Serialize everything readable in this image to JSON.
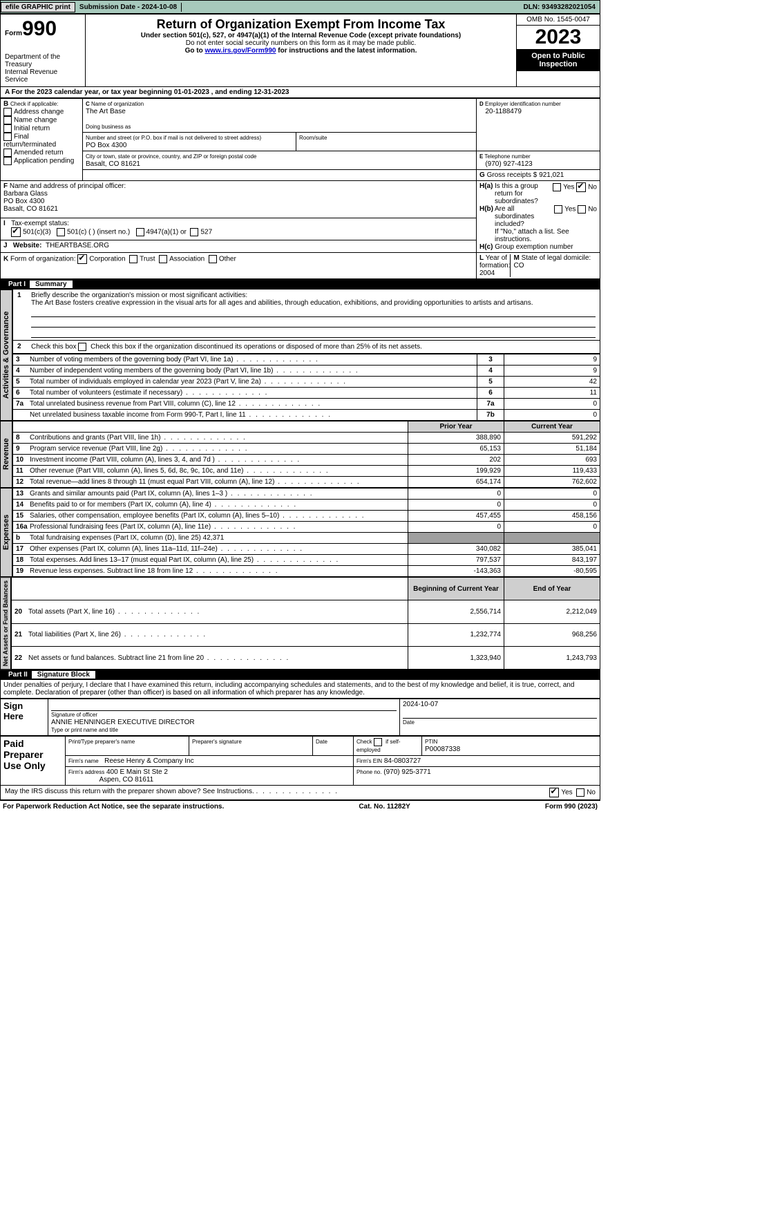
{
  "top": {
    "efile": "efile GRAPHIC print",
    "sub_lbl": "Submission Date - 2024-10-08",
    "dln": "DLN: 93493282021054"
  },
  "hdr": {
    "form": "Form",
    "num": "990",
    "dept": "Department of the Treasury",
    "irs": "Internal Revenue Service",
    "title": "Return of Organization Exempt From Income Tax",
    "sub1": "Under section 501(c), 527, or 4947(a)(1) of the Internal Revenue Code (except private foundations)",
    "sub2": "Do not enter social security numbers on this form as it may be made public.",
    "sub3a": "Go to ",
    "sub3link": "www.irs.gov/Form990",
    "sub3b": " for instructions and the latest information.",
    "omb": "OMB No. 1545-0047",
    "year": "2023",
    "insp": "Open to Public Inspection"
  },
  "A": {
    "txt": "For the 2023 calendar year, or tax year beginning 01-01-2023    , and ending 12-31-2023"
  },
  "B": {
    "hdr": "Check if applicable:",
    "o1": "Address change",
    "o2": "Name change",
    "o3": "Initial return",
    "o4": "Final return/terminated",
    "o5": "Amended return",
    "o6": "Application pending"
  },
  "C": {
    "l1": "Name of organization",
    "v1": "The Art Base",
    "l2": "Doing business as",
    "l3": "Number and street (or P.O. box if mail is not delivered to street address)",
    "v3": "PO Box 4300",
    "l3b": "Room/suite",
    "l4": "City or town, state or province, country, and ZIP or foreign postal code",
    "v4": "Basalt, CO  81621"
  },
  "D": {
    "lbl": "Employer identification number",
    "val": "20-1188479"
  },
  "E": {
    "lbl": "Telephone number",
    "val": "(970) 927-4123"
  },
  "G": {
    "lbl": "Gross receipts $",
    "val": "921,021"
  },
  "F": {
    "lbl": "Name and address of principal officer:",
    "name": "Barbara Glass",
    "addr1": "PO Box 4300",
    "addr2": "Basalt, CO  81621"
  },
  "H": {
    "a": "Is this a group return for subordinates?",
    "b": "Are all subordinates included?",
    "note": "If \"No,\" attach a list. See instructions.",
    "c": "Group exemption number",
    "yes": "Yes",
    "no": "No"
  },
  "I": {
    "lbl": "Tax-exempt status:",
    "o1": "501(c)(3)",
    "o2": "501(c) (  ) (insert no.)",
    "o3": "4947(a)(1) or",
    "o4": "527"
  },
  "J": {
    "lbl": "Website:",
    "val": "THEARTBASE.ORG"
  },
  "K": {
    "lbl": "Form of organization:",
    "o1": "Corporation",
    "o2": "Trust",
    "o3": "Association",
    "o4": "Other"
  },
  "L": {
    "lbl": "Year of formation:",
    "val": "2004"
  },
  "M": {
    "lbl": "State of legal domicile:",
    "val": "CO"
  },
  "P1": {
    "part": "Part I",
    "title": "Summary",
    "l1": "Briefly describe the organization's mission or most significant activities:",
    "l1v": "The Art Base fosters creative expression in the visual arts for all ages and abilities, through education, exhibitions, and providing opportunities to artists and artisans.",
    "l2": "Check this box      if the organization discontinued its operations or disposed of more than 25% of its net assets.",
    "rows_top": [
      {
        "n": "3",
        "t": "Number of voting members of the governing body (Part VI, line 1a)",
        "k": "3",
        "v": "9"
      },
      {
        "n": "4",
        "t": "Number of independent voting members of the governing body (Part VI, line 1b)",
        "k": "4",
        "v": "9"
      },
      {
        "n": "5",
        "t": "Total number of individuals employed in calendar year 2023 (Part V, line 2a)",
        "k": "5",
        "v": "42"
      },
      {
        "n": "6",
        "t": "Total number of volunteers (estimate if necessary)",
        "k": "6",
        "v": "11"
      },
      {
        "n": "7a",
        "t": "Total unrelated business revenue from Part VIII, column (C), line 12",
        "k": "7a",
        "v": "0"
      },
      {
        "n": "",
        "t": "Net unrelated business taxable income from Form 990-T, Part I, line 11",
        "k": "7b",
        "v": "0"
      }
    ],
    "py": "Prior Year",
    "cy": "Current Year",
    "rev": [
      {
        "n": "8",
        "t": "Contributions and grants (Part VIII, line 1h)",
        "p": "388,890",
        "c": "591,292"
      },
      {
        "n": "9",
        "t": "Program service revenue (Part VIII, line 2g)",
        "p": "65,153",
        "c": "51,184"
      },
      {
        "n": "10",
        "t": "Investment income (Part VIII, column (A), lines 3, 4, and 7d )",
        "p": "202",
        "c": "693"
      },
      {
        "n": "11",
        "t": "Other revenue (Part VIII, column (A), lines 5, 6d, 8c, 9c, 10c, and 11e)",
        "p": "199,929",
        "c": "119,433"
      },
      {
        "n": "12",
        "t": "Total revenue—add lines 8 through 11 (must equal Part VIII, column (A), line 12)",
        "p": "654,174",
        "c": "762,602"
      }
    ],
    "exp": [
      {
        "n": "13",
        "t": "Grants and similar amounts paid (Part IX, column (A), lines 1–3 )",
        "p": "0",
        "c": "0"
      },
      {
        "n": "14",
        "t": "Benefits paid to or for members (Part IX, column (A), line 4)",
        "p": "0",
        "c": "0"
      },
      {
        "n": "15",
        "t": "Salaries, other compensation, employee benefits (Part IX, column (A), lines 5–10)",
        "p": "457,455",
        "c": "458,156"
      },
      {
        "n": "16a",
        "t": "Professional fundraising fees (Part IX, column (A), line 11e)",
        "p": "0",
        "c": "0"
      },
      {
        "n": "b",
        "t": "Total fundraising expenses (Part IX, column (D), line 25) 42,371",
        "p": "",
        "c": ""
      },
      {
        "n": "17",
        "t": "Other expenses (Part IX, column (A), lines 11a–11d, 11f–24e)",
        "p": "340,082",
        "c": "385,041"
      },
      {
        "n": "18",
        "t": "Total expenses. Add lines 13–17 (must equal Part IX, column (A), line 25)",
        "p": "797,537",
        "c": "843,197"
      },
      {
        "n": "19",
        "t": "Revenue less expenses. Subtract line 18 from line 12",
        "p": "-143,363",
        "c": "-80,595"
      }
    ],
    "by": "Beginning of Current Year",
    "ey": "End of Year",
    "net": [
      {
        "n": "20",
        "t": "Total assets (Part X, line 16)",
        "p": "2,556,714",
        "c": "2,212,049"
      },
      {
        "n": "21",
        "t": "Total liabilities (Part X, line 26)",
        "p": "1,232,774",
        "c": "968,256"
      },
      {
        "n": "22",
        "t": "Net assets or fund balances. Subtract line 21 from line 20",
        "p": "1,323,940",
        "c": "1,243,793"
      }
    ],
    "side1": "Activities & Governance",
    "side2": "Revenue",
    "side3": "Expenses",
    "side4": "Net Assets or Fund Balances"
  },
  "P2": {
    "part": "Part II",
    "title": "Signature Block",
    "decl": "Under penalties of perjury, I declare that I have examined this return, including accompanying schedules and statements, and to the best of my knowledge and belief, it is true, correct, and complete. Declaration of preparer (other than officer) is based on all information of which preparer has any knowledge."
  },
  "sign": {
    "here": "Sign Here",
    "sig": "Signature of officer",
    "officer": "ANNIE HENNINGER  EXECUTIVE DIRECTOR",
    "type": "Type or print name and title",
    "date": "Date",
    "dateval": "2024-10-07"
  },
  "prep": {
    "hdr": "Paid Preparer Use Only",
    "name_l": "Print/Type preparer's name",
    "sig_l": "Preparer's signature",
    "date_l": "Date",
    "check": "Check       if self-employed",
    "ptin_l": "PTIN",
    "ptin": "P00087338",
    "firm_l": "Firm's name",
    "firm": "Reese Henry & Company Inc",
    "ein_l": "Firm's EIN",
    "ein": "84-0803727",
    "addr_l": "Firm's address",
    "addr1": "400 E Main St Ste 2",
    "addr2": "Aspen, CO  81611",
    "phone_l": "Phone no.",
    "phone": "(970) 925-3771"
  },
  "bot": {
    "q": "May the IRS discuss this return with the preparer shown above? See Instructions.",
    "yes": "Yes",
    "no": "No",
    "pra": "For Paperwork Reduction Act Notice, see the separate instructions.",
    "cat": "Cat. No. 11282Y",
    "form": "Form 990 (2023)"
  }
}
